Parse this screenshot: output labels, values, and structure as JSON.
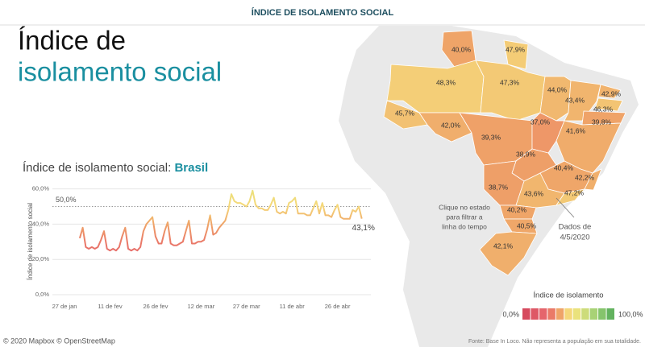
{
  "header": {
    "title": "ÍNDICE DE ISOLAMENTO SOCIAL"
  },
  "heading": {
    "line1": "Índice de",
    "line2": "isolamento social"
  },
  "chart_data": {
    "type": "line",
    "title": "Índice de isolamento social: ",
    "title_highlight": "Brasil",
    "ylabel": "Índice de isolamento social",
    "x": [
      "1 de fev",
      "2 de fev",
      "3 de fev",
      "4 de fev",
      "5 de fev",
      "6 de fev",
      "7 de fev",
      "8 de fev",
      "9 de fev",
      "10 de fev",
      "11 de fev",
      "12 de fev",
      "13 de fev",
      "14 de fev",
      "15 de fev",
      "16 de fev",
      "17 de fev",
      "18 de fev",
      "19 de fev",
      "20 de fev",
      "21 de fev",
      "22 de fev",
      "23 de fev",
      "24 de fev",
      "25 de fev",
      "26 de fev",
      "27 de fev",
      "28 de fev",
      "29 de fev",
      "1 de mar",
      "2 de mar",
      "3 de mar",
      "4 de mar",
      "5 de mar",
      "6 de mar",
      "7 de mar",
      "8 de mar",
      "9 de mar",
      "10 de mar",
      "11 de mar",
      "12 de mar",
      "13 de mar",
      "14 de mar",
      "15 de mar",
      "16 de mar",
      "17 de mar",
      "18 de mar",
      "19 de mar",
      "20 de mar",
      "21 de mar",
      "22 de mar",
      "23 de mar",
      "24 de mar",
      "25 de mar",
      "26 de mar",
      "27 de mar",
      "28 de mar",
      "29 de mar",
      "30 de mar",
      "31 de mar",
      "1 de abr",
      "2 de abr",
      "3 de abr",
      "4 de abr",
      "5 de abr",
      "6 de abr",
      "7 de abr",
      "8 de abr",
      "9 de abr",
      "10 de abr",
      "11 de abr",
      "12 de abr",
      "13 de abr",
      "14 de abr",
      "15 de abr",
      "16 de abr",
      "17 de abr",
      "18 de abr",
      "19 de abr",
      "20 de abr",
      "21 de abr",
      "22 de abr",
      "23 de abr",
      "24 de abr",
      "25 de abr",
      "26 de abr",
      "27 de abr",
      "28 de abr",
      "29 de abr",
      "30 de abr",
      "1 de mai",
      "2 de mai",
      "3 de mai",
      "4 de mai"
    ],
    "values": [
      32,
      38,
      27,
      26,
      27,
      26,
      27,
      31,
      36,
      26,
      25,
      26,
      25,
      27,
      33,
      38,
      26,
      25,
      26,
      25,
      27,
      36,
      40,
      42,
      44,
      33,
      29,
      29,
      36,
      41,
      29,
      28,
      28,
      29,
      30,
      36,
      42,
      29,
      29,
      30,
      30,
      31,
      37,
      45,
      34,
      35,
      38,
      40,
      42,
      48,
      57,
      53,
      52,
      52,
      51,
      50,
      53,
      59,
      51,
      49,
      49,
      48,
      48,
      51,
      55,
      47,
      46,
      47,
      46,
      52,
      53,
      55,
      46,
      46,
      46,
      45,
      45,
      49,
      53,
      46,
      52,
      45,
      45,
      44,
      48,
      51,
      44,
      43,
      43,
      43,
      48,
      47,
      50,
      43.1
    ],
    "value_labels": [
      null,
      null,
      null,
      null,
      null,
      null,
      null,
      null,
      null,
      null,
      null,
      null,
      null,
      null,
      null,
      null,
      null,
      null,
      null,
      null,
      null,
      null,
      null,
      null,
      null,
      null,
      null,
      null,
      null,
      null,
      null,
      null,
      null,
      null,
      null,
      null,
      null,
      null,
      null,
      null,
      null,
      null,
      null,
      null,
      null,
      null,
      null,
      null,
      null,
      null,
      null,
      null,
      null,
      null,
      null,
      null,
      null,
      null,
      null,
      null,
      null,
      null,
      null,
      null,
      null,
      null,
      null,
      null,
      null,
      null,
      null,
      null,
      null,
      null,
      null,
      null,
      null,
      null,
      null,
      null,
      null,
      null,
      null,
      null,
      null,
      null,
      null,
      null,
      null,
      null,
      null,
      null,
      null,
      "43,1%"
    ],
    "xlim": [
      "23 de jan",
      "7 de mai"
    ],
    "xticks": [
      "27 de jan",
      "11 de fev",
      "26 de fev",
      "12 de mar",
      "27 de mar",
      "11 de abr",
      "26 de abr"
    ],
    "ylim": [
      0,
      63
    ],
    "yticks": [
      {
        "value": 0,
        "label": "0,0%"
      },
      {
        "value": 20,
        "label": "20,0%"
      },
      {
        "value": 40,
        "label": "40,0%"
      },
      {
        "value": 60,
        "label": "60,0%"
      }
    ],
    "grid": true,
    "reference": {
      "value": 50,
      "label": "50,0%"
    },
    "color_scale": [
      "#d64a5e",
      "#de5866",
      "#e5656c",
      "#ea7a68",
      "#efa468",
      "#f5d77a",
      "#eae27c",
      "#cddc7a",
      "#a8d276",
      "#85c46c",
      "#62b25e"
    ]
  },
  "map": {
    "states": [
      {
        "value": 40.0,
        "label": "40,0%"
      },
      {
        "value": 47.9,
        "label": "47,9%"
      },
      {
        "value": 48.3,
        "label": "48,3%"
      },
      {
        "value": 47.3,
        "label": "47,3%"
      },
      {
        "value": 44.0,
        "label": "44,0%"
      },
      {
        "value": 43.4,
        "label": "43,4%"
      },
      {
        "value": 42.9,
        "label": "42,9%"
      },
      {
        "value": 46.3,
        "label": "46,3%"
      },
      {
        "value": 39.8,
        "label": "39,8%"
      },
      {
        "value": 45.7,
        "label": "45,7%"
      },
      {
        "value": 42.0,
        "label": "42,0%"
      },
      {
        "value": 39.3,
        "label": "39,3%"
      },
      {
        "value": 37.0,
        "label": "37,0%"
      },
      {
        "value": 41.6,
        "label": "41,6%"
      },
      {
        "value": 38.9,
        "label": "38,9%"
      },
      {
        "value": 40.4,
        "label": "40,4%"
      },
      {
        "value": 42.2,
        "label": "42,2%"
      },
      {
        "value": 38.7,
        "label": "38,7%"
      },
      {
        "value": 43.6,
        "label": "43,6%"
      },
      {
        "value": 47.2,
        "label": "47,2%"
      },
      {
        "value": 40.2,
        "label": "40,2%"
      },
      {
        "value": 40.5,
        "label": "40,5%"
      },
      {
        "value": 42.1,
        "label": "42,1%"
      }
    ],
    "hint": [
      "Clique no estado",
      "para filtrar a",
      "linha do tempo"
    ],
    "date_note": [
      "Dados de",
      "4/5/2020"
    ],
    "legend": {
      "title": "Índice de isolamento",
      "min": {
        "value": 0,
        "label": "0,0%"
      },
      "max": {
        "value": 100,
        "label": "100,0%"
      }
    }
  },
  "footer": {
    "attribution": "© 2020 Mapbox © OpenStreetMap",
    "source": "Fonte: Base In Loco. Não representa a população em sua totalidade."
  }
}
